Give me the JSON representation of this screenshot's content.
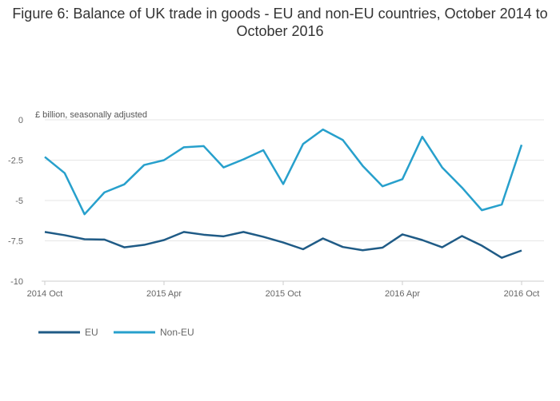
{
  "chart_data": {
    "type": "line",
    "title": "Figure 6: Balance of UK trade in goods - EU and non-EU countries, October 2014 to October 2016",
    "unit_label": "£ billion, seasonally adjusted",
    "xlabel": "",
    "ylabel": "",
    "ylim": [
      -10,
      0
    ],
    "yticks": [
      0,
      -2.5,
      -5,
      -7.5,
      -10
    ],
    "ytick_labels": [
      "0",
      "-2.5",
      "-5",
      "-7.5",
      "-10"
    ],
    "xtick_labels": [
      "2014 Oct",
      "2015 Apr",
      "2015 Oct",
      "2016 Apr",
      "2016 Oct"
    ],
    "xtick_index": [
      0,
      6,
      12,
      18,
      24
    ],
    "grid": true,
    "legend_position": "bottom-left",
    "series": [
      {
        "name": "EU",
        "color": "#1f5b86",
        "values": [
          -6.95,
          -7.15,
          -7.4,
          -7.42,
          -7.9,
          -7.75,
          -7.45,
          -6.95,
          -7.12,
          -7.22,
          -6.95,
          -7.25,
          -7.6,
          -8.02,
          -7.35,
          -7.88,
          -8.08,
          -7.92,
          -7.1,
          -7.45,
          -7.9,
          -7.2,
          -7.8,
          -8.55,
          -8.1
        ]
      },
      {
        "name": "Non-EU",
        "color": "#27a0cc",
        "values": [
          -2.3,
          -3.3,
          -5.85,
          -4.5,
          -4.0,
          -2.8,
          -2.5,
          -1.7,
          -1.63,
          -2.95,
          -2.45,
          -1.88,
          -3.98,
          -1.5,
          -0.6,
          -1.25,
          -2.85,
          -4.12,
          -3.68,
          -1.05,
          -2.95,
          -4.2,
          -5.6,
          -5.25,
          -1.55
        ]
      }
    ]
  }
}
